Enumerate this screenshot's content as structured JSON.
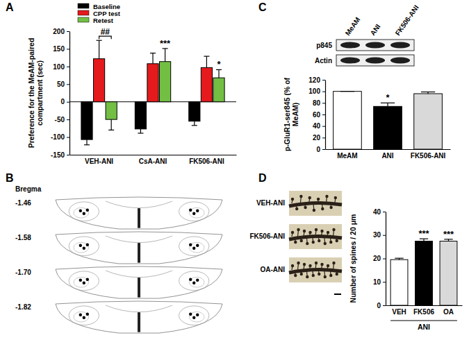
{
  "chart_data": [
    {
      "type": "bar",
      "title": "A",
      "y_label": "Preference for the MeAM-paired compartment (sec)",
      "categories": [
        "VEH-ANI",
        "CsA-ANI",
        "FK506-ANI"
      ],
      "series": [
        {
          "name": "Baseline",
          "color": "#000000",
          "values": [
            -107,
            -77,
            -55
          ],
          "errors": [
            15,
            12,
            12
          ]
        },
        {
          "name": "CPP test",
          "color": "#e41a1c",
          "values": [
            122,
            108,
            97
          ],
          "errors": [
            52,
            30,
            32
          ]
        },
        {
          "name": "Retest",
          "color": "#72bf44",
          "values": [
            -50,
            114,
            68
          ],
          "errors": [
            30,
            37,
            23
          ],
          "significance": [
            "##",
            "***",
            "*"
          ]
        }
      ],
      "ylim": [
        -150,
        200
      ],
      "yticks": [
        -150,
        -100,
        -50,
        0,
        50,
        100,
        150,
        200
      ],
      "legend": "top-left"
    },
    {
      "type": "bar",
      "title": "C",
      "y_label": "p-GluR1-ser845 (% of MeAM)",
      "categories": [
        "MeAM",
        "ANI",
        "FK506-ANI"
      ],
      "values": [
        100,
        74,
        96
      ],
      "errors": [
        0,
        6,
        3
      ],
      "colors": [
        "#ffffff",
        "#000000",
        "#d9d9d9"
      ],
      "significance": [
        null,
        "*",
        null
      ],
      "ylim": [
        0,
        120
      ],
      "yticks": [
        0,
        20,
        40,
        60,
        80,
        100,
        120
      ],
      "blot_rows": [
        "p845",
        "Actin"
      ]
    },
    {
      "type": "bar",
      "title": "D",
      "y_label": "Number of spines / 20 μm",
      "x_label": "ANI",
      "categories": [
        "VEH",
        "FK506",
        "OA"
      ],
      "values": [
        19.5,
        27.4,
        27.4
      ],
      "errors": [
        0.6,
        1.0,
        0.8
      ],
      "colors": [
        "#ffffff",
        "#000000",
        "#d9d9d9"
      ],
      "significance": [
        null,
        "***",
        "***"
      ],
      "ylim": [
        0,
        40
      ],
      "yticks": [
        0,
        10,
        20,
        30,
        40
      ],
      "image_labels": [
        "VEH-ANI",
        "FK506-ANI",
        "OA-ANI"
      ]
    }
  ],
  "diagram": {
    "title": "B",
    "header": "Bregma",
    "levels": [
      "-1.46",
      "-1.58",
      "-1.70",
      "-1.82"
    ]
  }
}
